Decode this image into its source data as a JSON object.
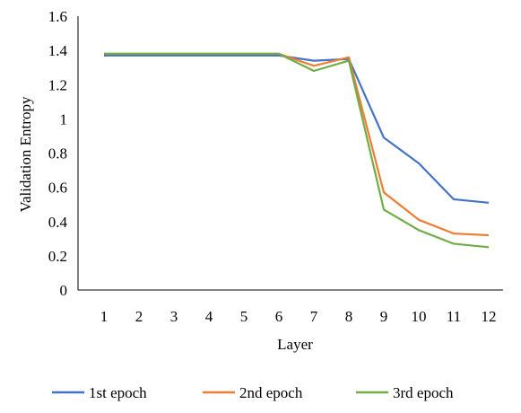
{
  "chart_data": {
    "type": "line",
    "title": "",
    "xlabel": "Layer",
    "ylabel": "Validation Entropy",
    "x": [
      1,
      2,
      3,
      4,
      5,
      6,
      7,
      8,
      9,
      10,
      11,
      12
    ],
    "xticks": [
      "1",
      "2",
      "3",
      "4",
      "5",
      "6",
      "7",
      "8",
      "9",
      "10",
      "11",
      "12"
    ],
    "ylim": [
      0,
      1.6
    ],
    "yticks": [
      "0",
      "0.2",
      "0.4",
      "0.6",
      "0.8",
      "1",
      "1.2",
      "1.4",
      "1.6"
    ],
    "grid": false,
    "legend_position": "bottom",
    "series": [
      {
        "name": "1st epoch",
        "color": "#4472C4",
        "values": [
          1.37,
          1.37,
          1.37,
          1.37,
          1.37,
          1.37,
          1.34,
          1.35,
          0.89,
          0.74,
          0.53,
          0.51
        ]
      },
      {
        "name": "2nd epoch",
        "color": "#ED7D31",
        "values": [
          1.38,
          1.38,
          1.38,
          1.38,
          1.38,
          1.38,
          1.31,
          1.36,
          0.57,
          0.41,
          0.33,
          0.32
        ]
      },
      {
        "name": "3rd epoch",
        "color": "#70AD47",
        "values": [
          1.38,
          1.38,
          1.38,
          1.38,
          1.38,
          1.38,
          1.28,
          1.34,
          0.47,
          0.35,
          0.27,
          0.25
        ]
      }
    ]
  }
}
